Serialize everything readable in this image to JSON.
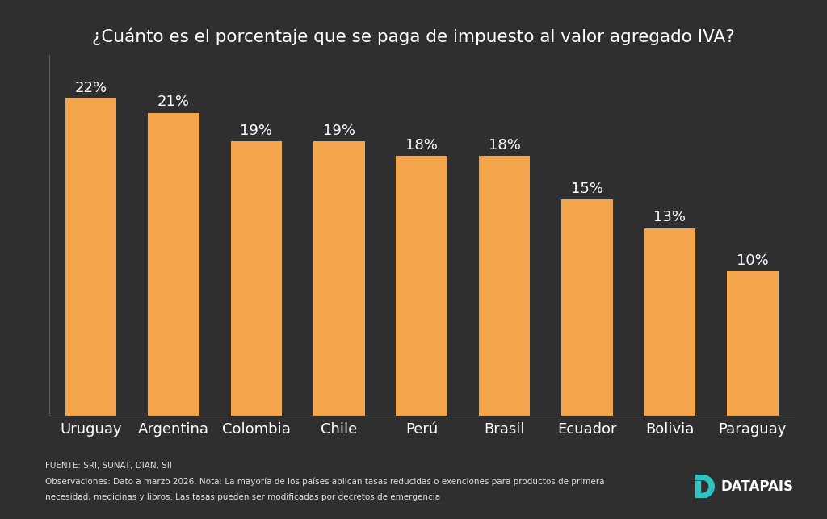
{
  "chart_data": {
    "type": "bar",
    "title": "¿Cuánto es el porcentaje que se paga de impuesto al valor agregado IVA?",
    "categories": [
      "Uruguay",
      "Argentina",
      "Colombia",
      "Chile",
      "Perú",
      "Brasil",
      "Ecuador",
      "Bolivia",
      "Paraguay"
    ],
    "values": [
      22,
      21,
      19,
      19,
      18,
      18,
      15,
      13,
      10
    ],
    "value_labels": [
      "22%",
      "21%",
      "19%",
      "19%",
      "18%",
      "18%",
      "15%",
      "13%",
      "10%"
    ],
    "data_labels": true,
    "color": "#f5a54c",
    "ylim": [
      0,
      25
    ],
    "tick_labels": "x",
    "grid": false,
    "source": "FUENTE: SRI, SUNAT, DIAN, SII",
    "note": [
      "Observaciones: Dato a marzo 2026. Nota: La mayoría de los países aplican tasas reducidas o exenciones para productos de primera",
      "necesidad, medicinas y libros. Las tasas pueden ser modificadas por decretos de emergencia"
    ],
    "brand": "DATAPAIS"
  }
}
